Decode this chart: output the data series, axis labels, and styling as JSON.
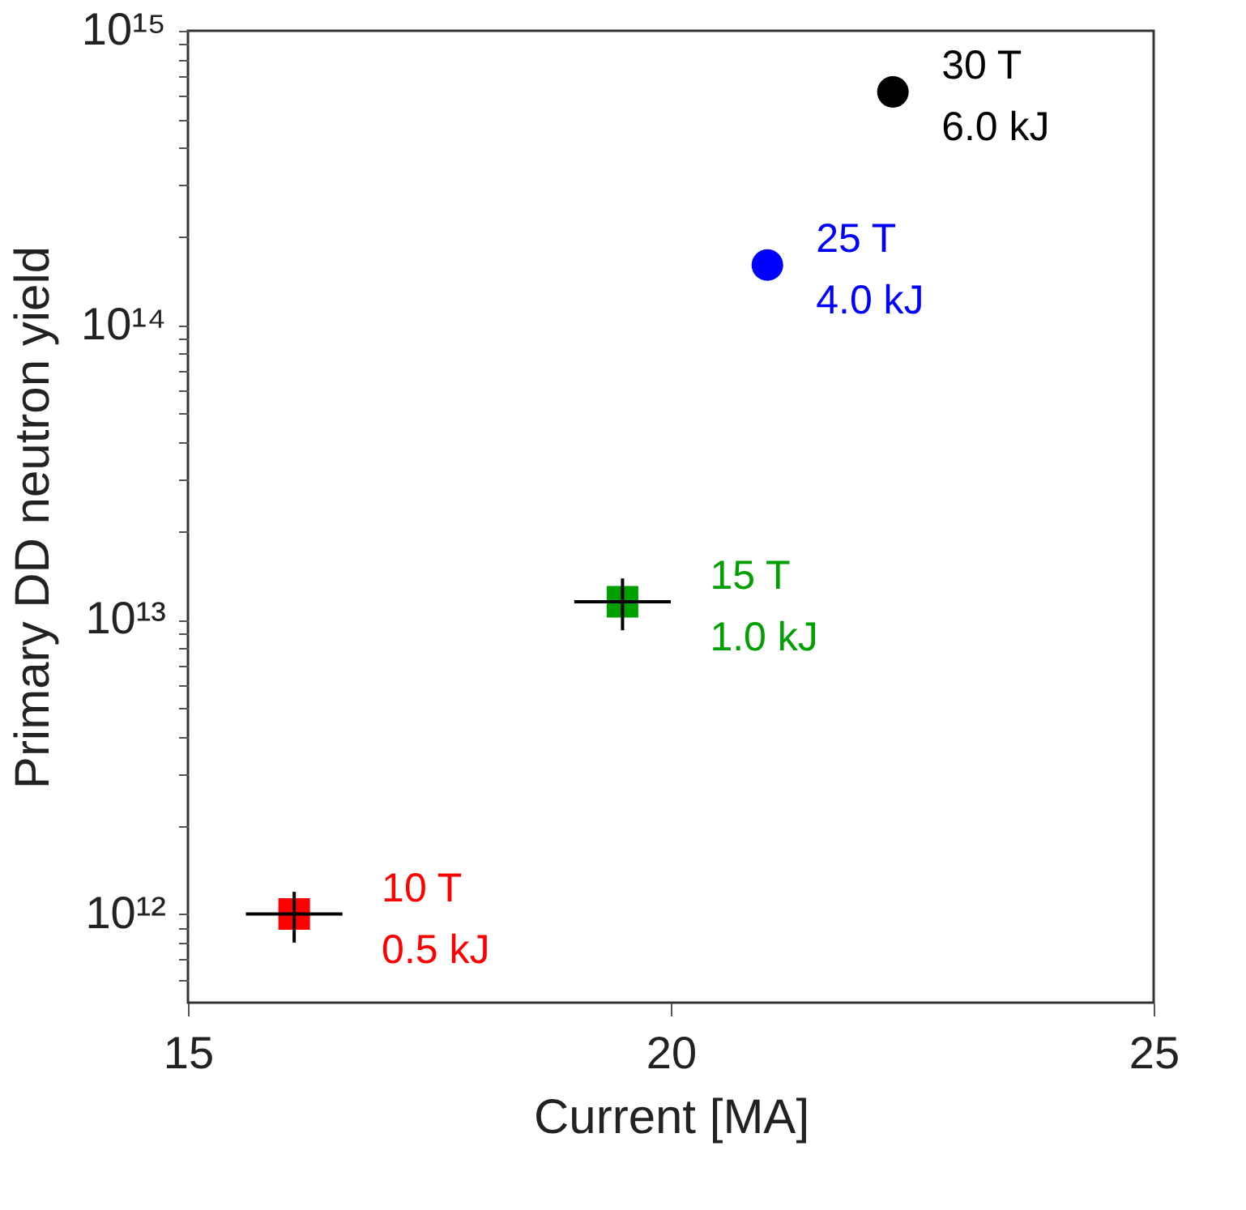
{
  "chart_data": {
    "type": "scatter",
    "xlabel": "Current [MA]",
    "ylabel": "Primary DD neutron yield",
    "log": "y",
    "grid": false,
    "xlim": [
      15,
      25
    ],
    "xticks": [
      15,
      20,
      25
    ],
    "ylim": [
      500000000000.0,
      1000000000000000.0
    ],
    "yticks": [
      {
        "value": 600000000000.0,
        "label": null
      },
      {
        "value": 700000000000.0,
        "label": null
      },
      {
        "value": 800000000000.0,
        "label": null
      },
      {
        "value": 900000000000.0,
        "label": null
      },
      {
        "value": 1000000000000.0,
        "label": "10¹²"
      },
      {
        "value": 2000000000000.0,
        "label": null
      },
      {
        "value": 3000000000000.0,
        "label": null
      },
      {
        "value": 4000000000000.0,
        "label": null
      },
      {
        "value": 5000000000000.0,
        "label": null
      },
      {
        "value": 6000000000000.0,
        "label": null
      },
      {
        "value": 7000000000000.0,
        "label": null
      },
      {
        "value": 8000000000000.0,
        "label": null
      },
      {
        "value": 9000000000000.0,
        "label": null
      },
      {
        "value": 10000000000000.0,
        "label": "10¹³"
      },
      {
        "value": 20000000000000.0,
        "label": null
      },
      {
        "value": 30000000000000.0,
        "label": null
      },
      {
        "value": 40000000000000.0,
        "label": null
      },
      {
        "value": 50000000000000.0,
        "label": null
      },
      {
        "value": 60000000000000.0,
        "label": null
      },
      {
        "value": 70000000000000.0,
        "label": null
      },
      {
        "value": 80000000000000.0,
        "label": null
      },
      {
        "value": 90000000000000.0,
        "label": null
      },
      {
        "value": 100000000000000.0,
        "label": "10¹⁴"
      },
      {
        "value": 200000000000000.0,
        "label": null
      },
      {
        "value": 300000000000000.0,
        "label": null
      },
      {
        "value": 400000000000000.0,
        "label": null
      },
      {
        "value": 500000000000000.0,
        "label": null
      },
      {
        "value": 600000000000000.0,
        "label": null
      },
      {
        "value": 700000000000000.0,
        "label": null
      },
      {
        "value": 800000000000000.0,
        "label": null
      },
      {
        "value": 900000000000000.0,
        "label": null
      },
      {
        "value": 1000000000000000.0,
        "label": "10¹⁵"
      }
    ],
    "series": [
      {
        "name": "10 T\n0.5 kJ",
        "color": "#ff0000",
        "marker": "square",
        "x": [
          16.1
        ],
        "values": [
          1000000000000.0
        ],
        "errors": [
          [
            800000000000.0,
            1190000000000.0
          ]
        ],
        "xerrors": [
          0.5
        ]
      },
      {
        "name": "15 T\n1.0 kJ",
        "color": "#00a000",
        "marker": "square",
        "x": [
          19.5
        ],
        "values": [
          11500000000000.0
        ],
        "errors": [
          [
            9200000000000.0,
            13800000000000.0
          ]
        ],
        "xerrors": [
          0.5
        ]
      },
      {
        "name": "25 T\n4.0 kJ",
        "color": "#0000ff",
        "marker": "circle",
        "x": [
          21.0
        ],
        "values": [
          160000000000000.0
        ]
      },
      {
        "name": "30 T\n6.0 kJ",
        "color": "#000000",
        "marker": "circle",
        "x": [
          22.3
        ],
        "values": [
          620000000000000.0
        ]
      }
    ]
  }
}
